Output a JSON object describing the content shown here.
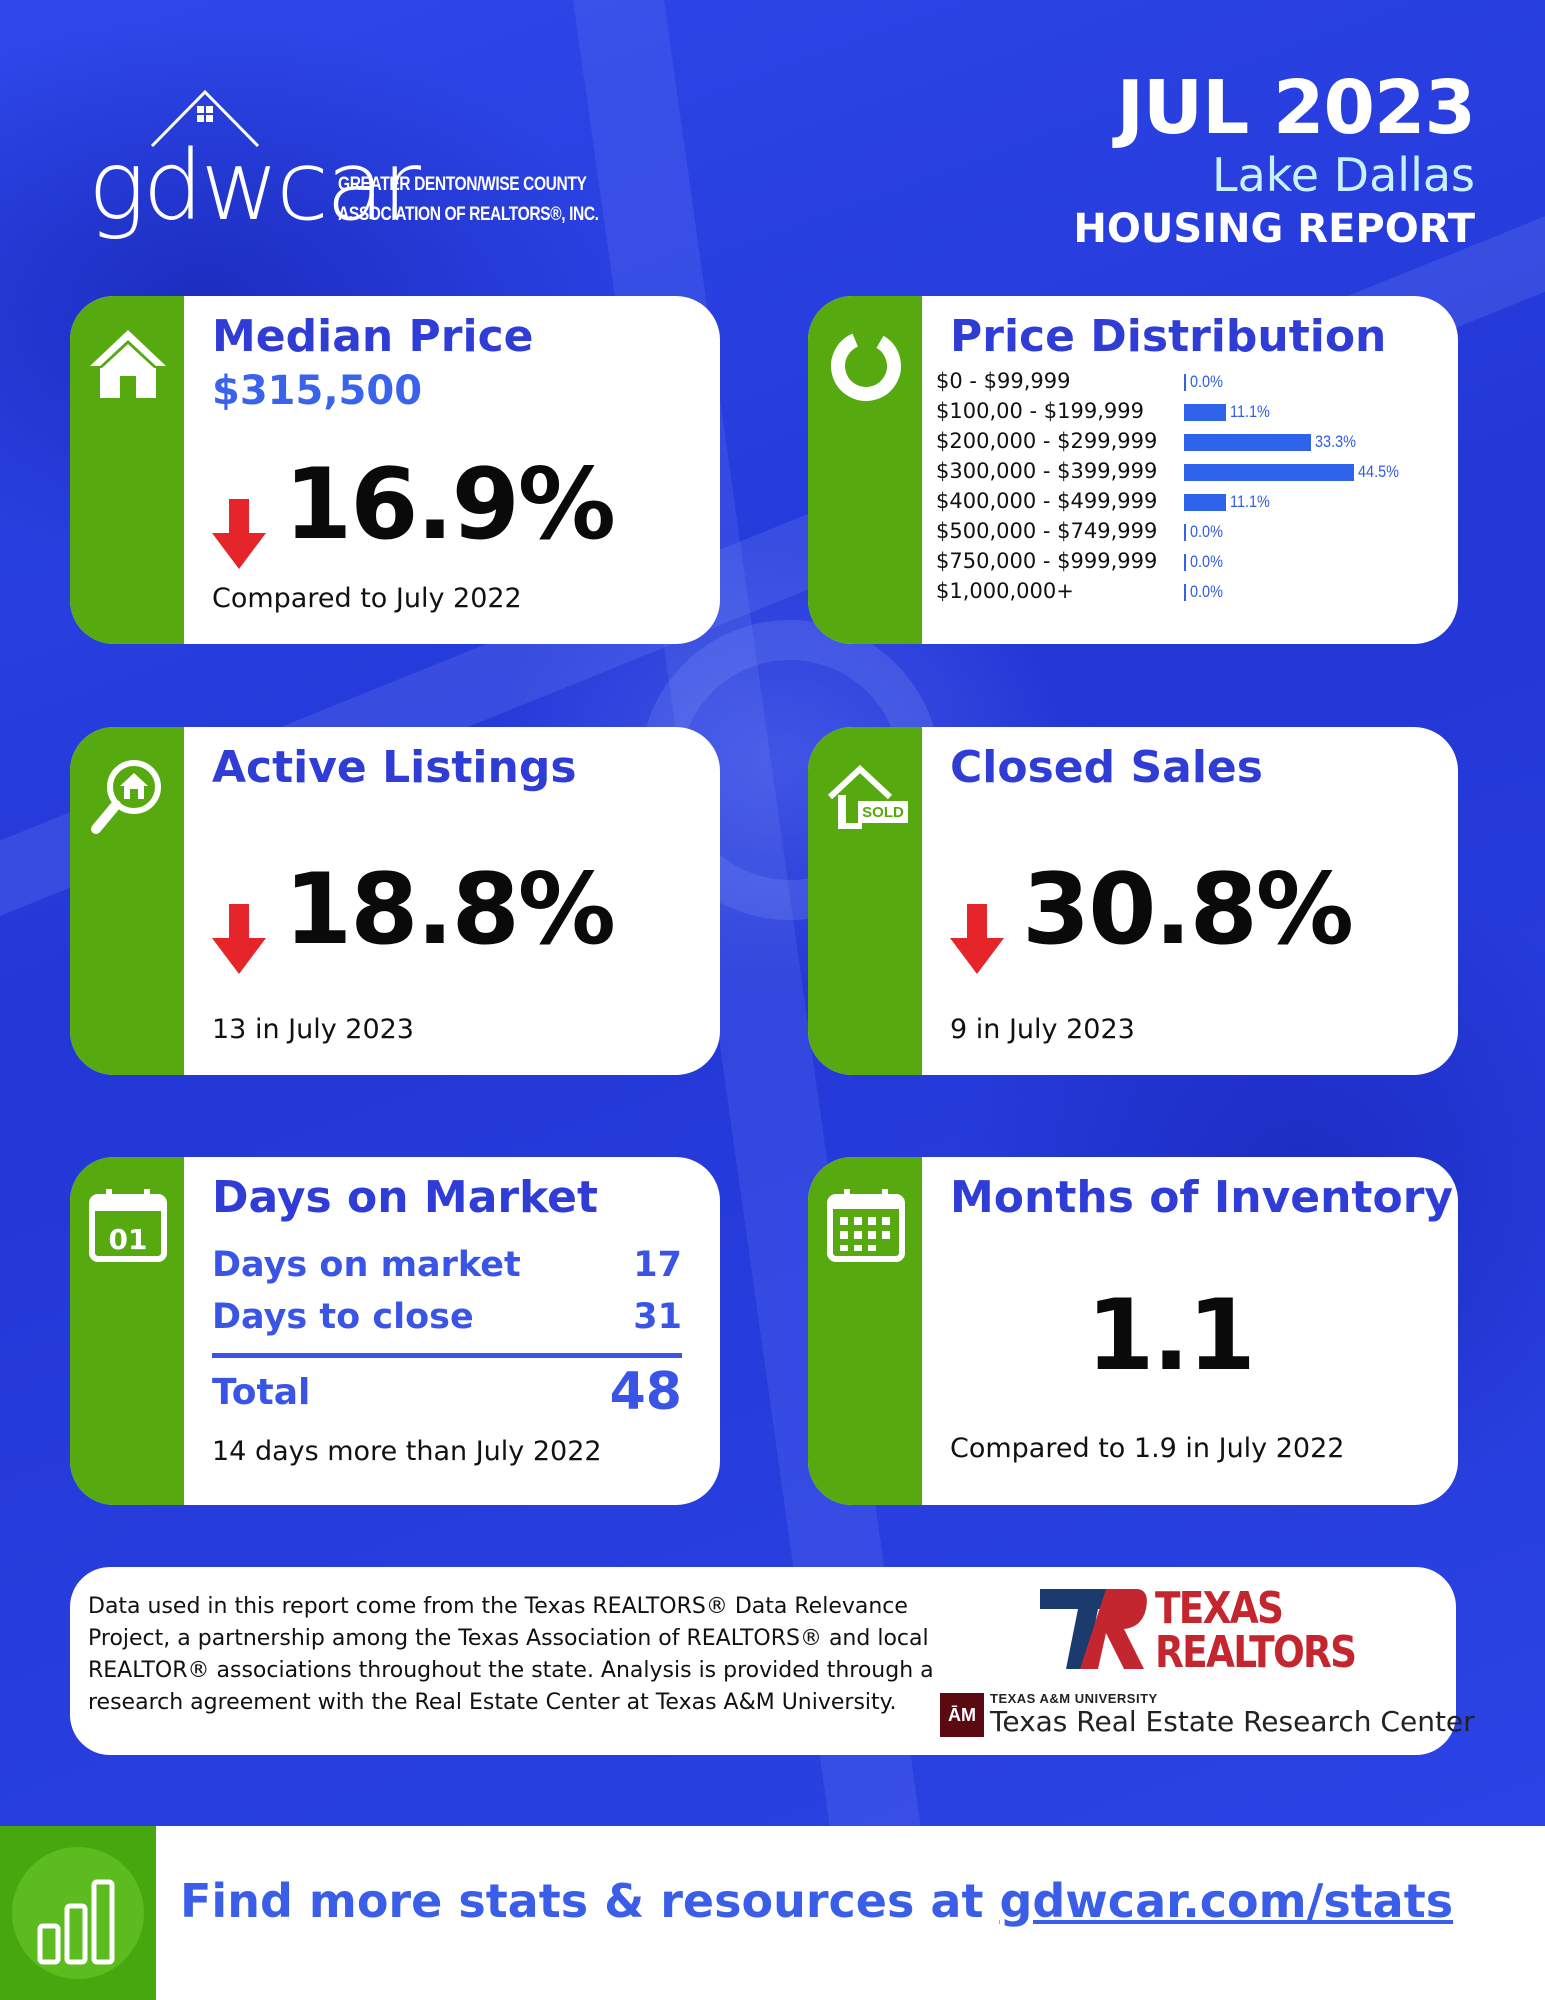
{
  "header": {
    "date": "JUL 2023",
    "city": "Lake Dallas",
    "report": "HOUSING REPORT"
  },
  "logo": {
    "word": "gdwcar",
    "line1": "GREATER DENTON/WISE COUNTY",
    "line2": "ASSOCIATION OF REALTORS®, INC."
  },
  "median": {
    "title": "Median Price",
    "value": "$315,500",
    "change": "16.9%",
    "direction": "down",
    "note": "Compared to July 2022"
  },
  "distribution": {
    "title": "Price Distribution",
    "rows": [
      {
        "label": "$0 - $99,999",
        "value": "0.0%",
        "pct": 0.0
      },
      {
        "label": "$100,00 - $199,999",
        "value": "11.1%",
        "pct": 11.1
      },
      {
        "label": "$200,000 - $299,999",
        "value": "33.3%",
        "pct": 33.3
      },
      {
        "label": "$300,000 - $399,999",
        "value": "44.5%",
        "pct": 44.5
      },
      {
        "label": "$400,000 - $499,999",
        "value": "11.1%",
        "pct": 11.1
      },
      {
        "label": "$500,000 - $749,999",
        "value": "0.0%",
        "pct": 0.0
      },
      {
        "label": "$750,000 - $999,999",
        "value": "0.0%",
        "pct": 0.0
      },
      {
        "label": "$1,000,000+",
        "value": "0.0%",
        "pct": 0.0
      }
    ]
  },
  "active": {
    "title": "Active Listings",
    "change": "18.8%",
    "direction": "down",
    "note": "13 in July 2023"
  },
  "closed": {
    "title": "Closed Sales",
    "change": "30.8%",
    "direction": "down",
    "note": "9 in July 2023",
    "icon_text": "SOLD"
  },
  "dom": {
    "title": "Days on Market",
    "icon_text": "01",
    "rows": [
      {
        "label": "Days on market",
        "value": "17"
      },
      {
        "label": "Days to close",
        "value": "31"
      }
    ],
    "total_label": "Total",
    "total_value": "48",
    "note": "14 days more than July 2022"
  },
  "inventory": {
    "title": "Months of Inventory",
    "value": "1.1",
    "note": "Compared to 1.9 in July 2022"
  },
  "info": {
    "text": "Data used in this report come from the Texas REALTORS® Data Relevance Project, a partnership among the Texas Association of REALTORS® and local REALTOR® associations throughout the state. Analysis is provided through a research agreement with the Real Estate Center at Texas A&M University.",
    "tr_line1": "TEXAS",
    "tr_line2": "REALTORS",
    "tam_box": "ĀM",
    "tam_small": "TEXAS A&M UNIVERSITY",
    "tam_big": "Texas Real Estate Research Center"
  },
  "footer": {
    "cta_prefix": "Find more stats & resources at ",
    "cta_link": "gdwcar.com/stats"
  },
  "colors": {
    "background": "#2a40e0",
    "green": "#56a90e",
    "title_blue": "#2f3dd6",
    "arrow_red": "#e5252a"
  }
}
